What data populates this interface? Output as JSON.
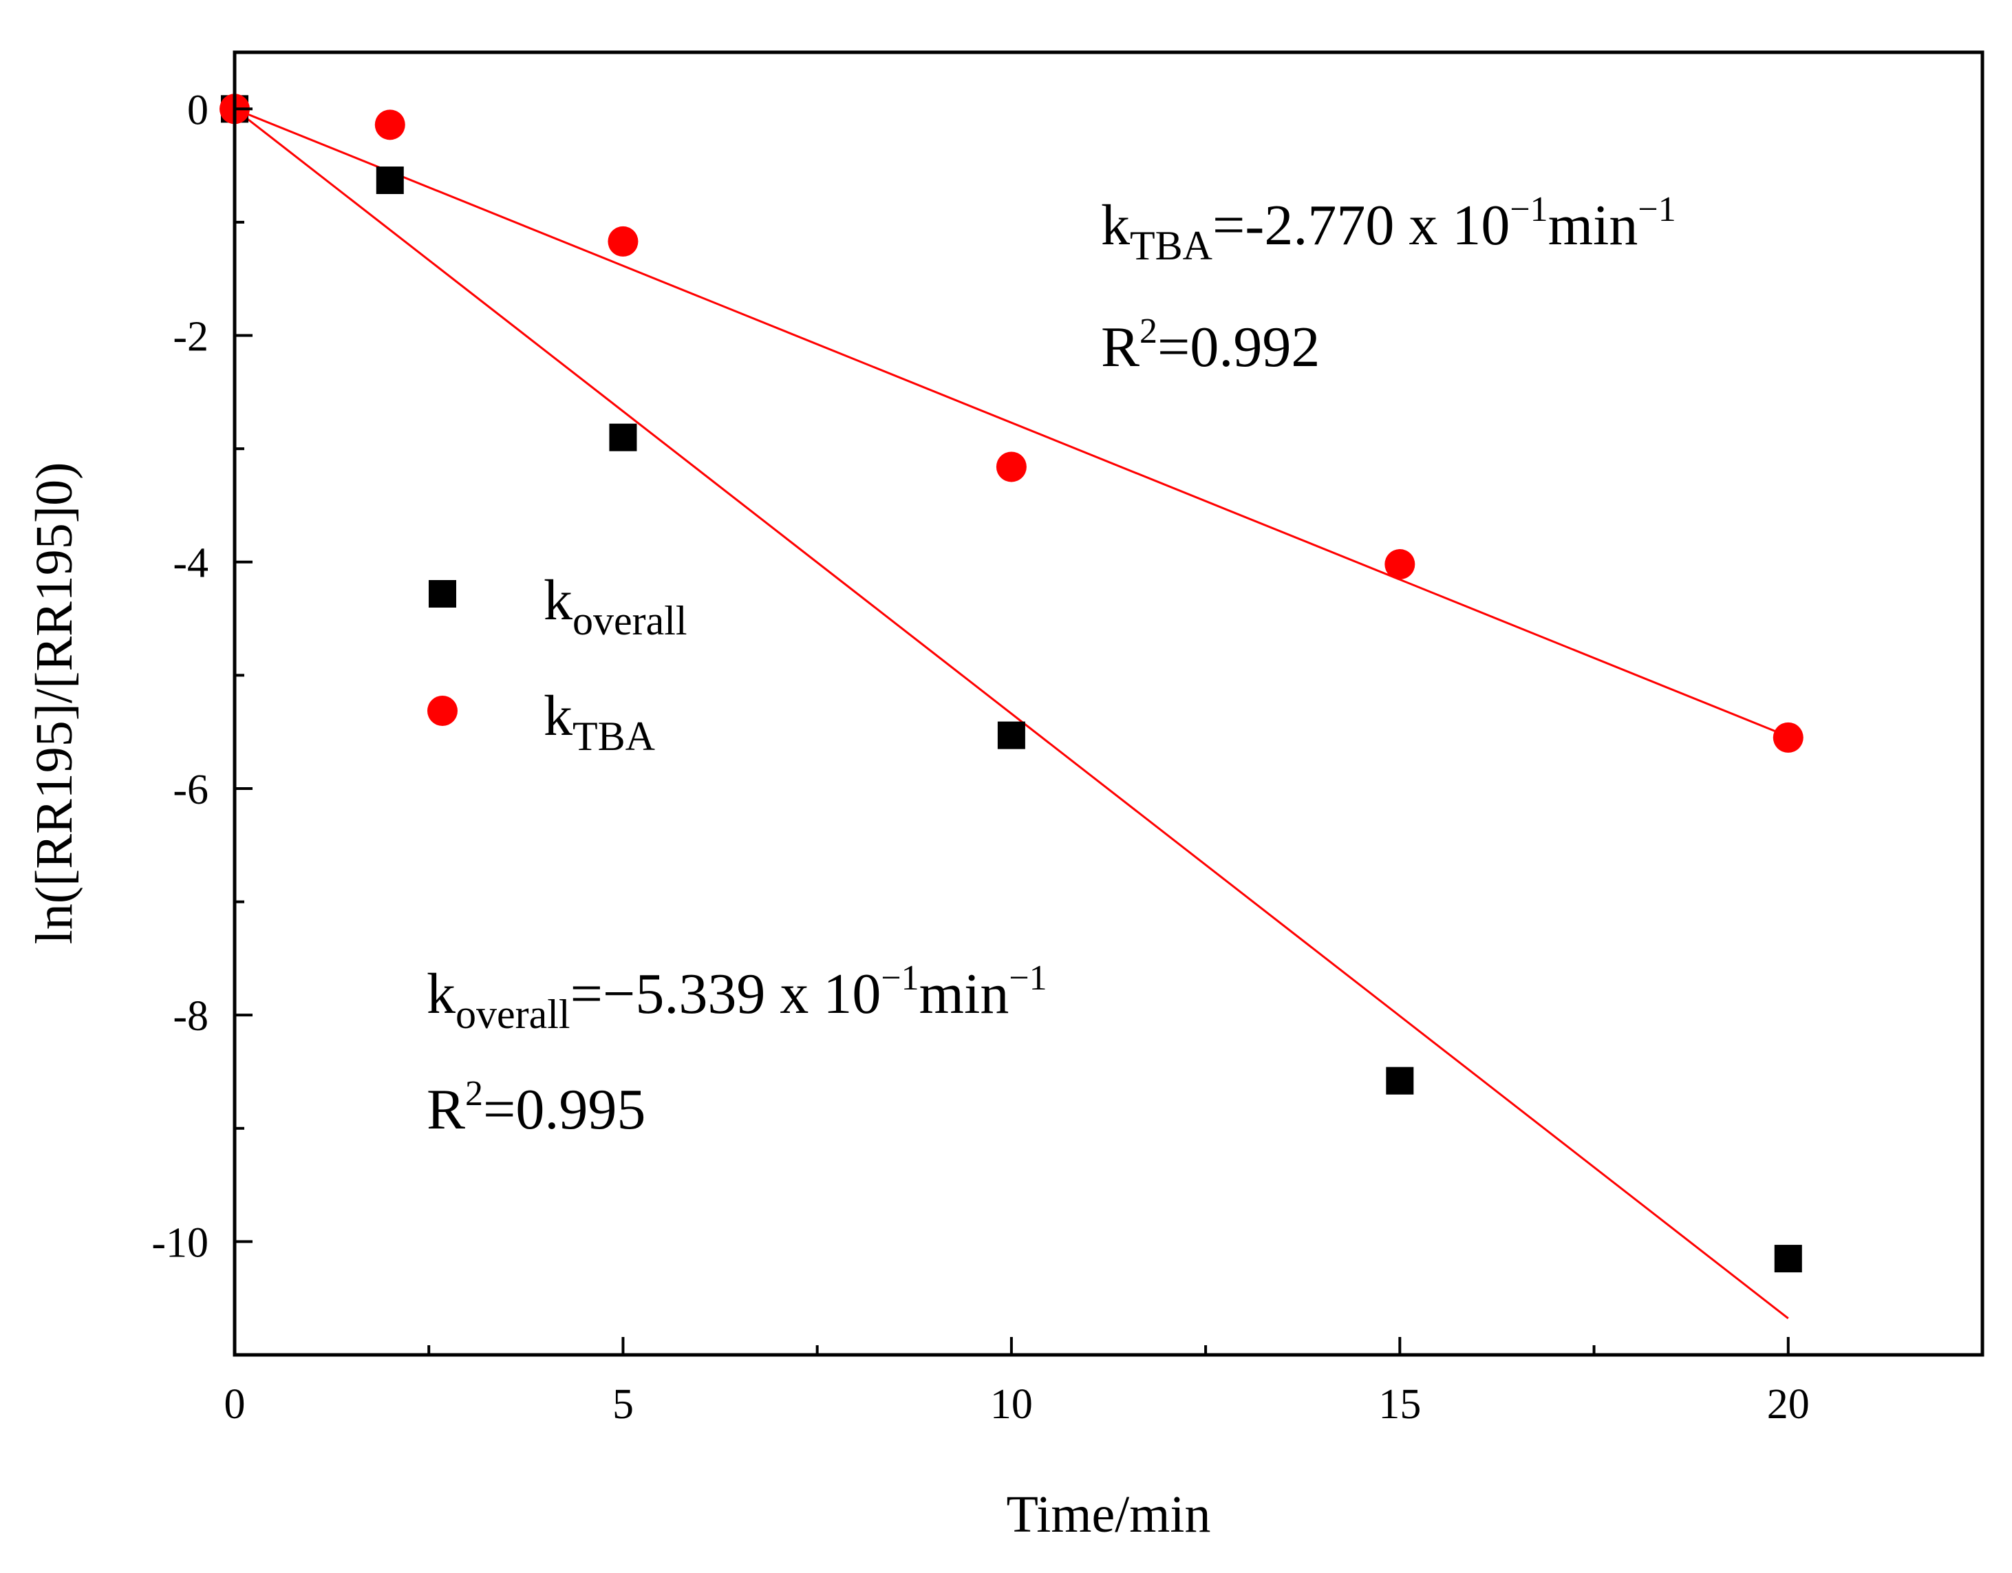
{
  "chart_data": {
    "type": "scatter",
    "xlabel": "Time/min",
    "ylabel": "ln([RR195]/[RR195]0)",
    "xlim": [
      0,
      22.5
    ],
    "ylim": [
      -11,
      0.5
    ],
    "x_ticks": [
      0,
      5,
      10,
      15,
      20
    ],
    "x_ticks_minor": [
      2.5,
      7.5,
      12.5,
      17.5,
      22.5
    ],
    "x_tick_labels": [
      "0",
      "5",
      "10",
      "15",
      "20"
    ],
    "y_ticks": [
      0,
      -2,
      -4,
      -6,
      -8,
      -10
    ],
    "y_ticks_minor": [
      -1,
      -3,
      -5,
      -7,
      -9
    ],
    "y_tick_labels": [
      "0",
      "-2",
      "-4",
      "-6",
      "-8",
      "-10"
    ],
    "grid": false,
    "legend_position": "middle-left",
    "series": [
      {
        "name": "k",
        "subscript": "overall",
        "marker": "square",
        "color": "#000000",
        "x": [
          0,
          2,
          5,
          10,
          15,
          20
        ],
        "y": [
          0,
          -0.63,
          -2.9,
          -5.53,
          -8.58,
          -10.15
        ],
        "fit": {
          "slope": -0.5339,
          "intercept": 0,
          "x_range": [
            0,
            20
          ],
          "color": "#ff0000"
        }
      },
      {
        "name": "k",
        "subscript": "TBA",
        "marker": "circle",
        "color": "#ff0000",
        "x": [
          0,
          2,
          5,
          10,
          15,
          20
        ],
        "y": [
          0,
          -0.14,
          -1.17,
          -3.16,
          -4.02,
          -5.55
        ],
        "fit": {
          "slope": -0.277,
          "intercept": 0,
          "x_range": [
            0,
            20
          ],
          "color": "#ff0000"
        }
      }
    ],
    "annotations": {
      "tba": {
        "k": "k",
        "sub": "TBA",
        "eq": "=-2.770 x 10",
        "exp": "−1",
        "unit": "min",
        "unit_exp": "−1",
        "r": "R",
        "r_exp": "2",
        "r_val": "=0.992"
      },
      "overall": {
        "k": "k",
        "sub": "overall",
        "eq": "=−5.339 x 10",
        "exp": "−1",
        "unit": "min",
        "unit_exp": "−1",
        "r": "R",
        "r_exp": "2",
        "r_val": "=0.995"
      }
    }
  }
}
